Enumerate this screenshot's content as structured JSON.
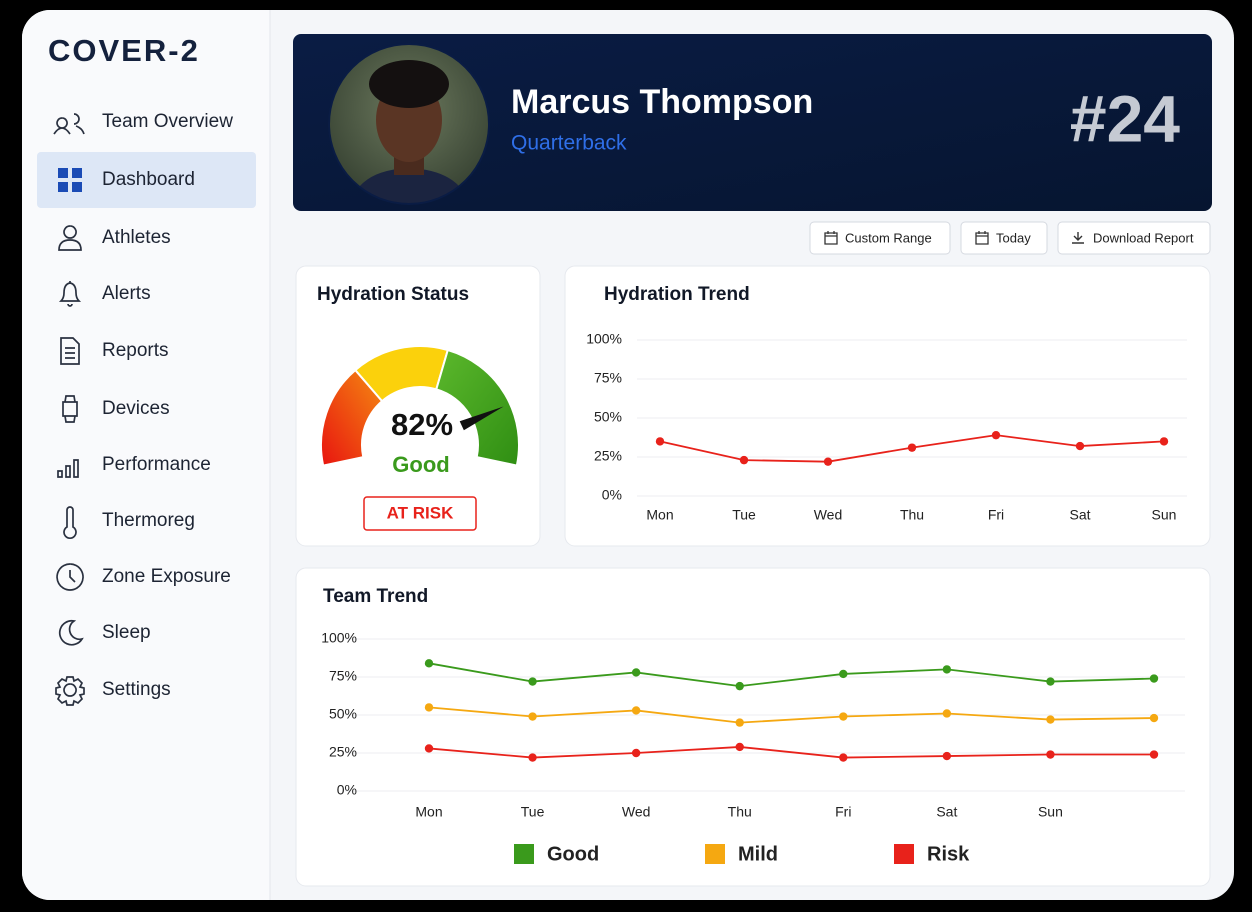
{
  "sidebar": {
    "logo": "COVER-2",
    "nav": [
      "Team Overview",
      "Dashboard",
      "Athletes",
      "Alerts",
      "Reports",
      "Devices",
      "Performance",
      "Thermoreg",
      "Zone Exposure",
      "Sleep",
      "Settings"
    ],
    "active": 1
  },
  "profile": {
    "name": "Marcus Thompson",
    "position": "Quarterback",
    "number": "#24"
  },
  "actions": [
    "Custom Range",
    "Today",
    "Download Report"
  ],
  "chart_data": [
    {
      "type": "gauge",
      "title": "Hydration Status",
      "value": 82,
      "value_label": "82%",
      "status": "Good",
      "alert": "AT RISK",
      "lim": [
        0,
        100
      ]
    },
    {
      "type": "line",
      "title": "Hydration Trend",
      "categories": [
        "Mon",
        "Tue",
        "Wed",
        "Thu",
        "Fri",
        "Sat",
        "Sun"
      ],
      "values": [
        35,
        23,
        22,
        31,
        39,
        32,
        35
      ],
      "color": "#e8221b",
      "ylim": [
        0,
        100
      ],
      "yticks": [
        {
          "value": 0,
          "label": "0%"
        },
        {
          "value": 25,
          "label": "25%"
        },
        {
          "value": 50,
          "label": "50%"
        },
        {
          "value": 75,
          "label": "75%"
        },
        {
          "value": 100,
          "label": "100%"
        }
      ],
      "grid": true
    },
    {
      "type": "line",
      "title": "Team Trend",
      "categories": [
        "Mon",
        "Tue",
        "Wed",
        "Thu",
        "Fri",
        "Sat",
        "Sun",
        null
      ],
      "series": [
        {
          "name": "Good",
          "color": "#3a9a1c",
          "values": [
            84,
            72,
            78,
            69,
            77,
            80,
            72,
            74
          ]
        },
        {
          "name": "Mild",
          "color": "#f5a811",
          "values": [
            55,
            49,
            53,
            45,
            49,
            51,
            47,
            48
          ]
        },
        {
          "name": "Risk",
          "color": "#e8221b",
          "values": [
            28,
            22,
            25,
            29,
            22,
            23,
            24,
            24
          ]
        }
      ],
      "ylim": [
        0,
        100
      ],
      "yticks": [
        {
          "value": 0,
          "label": "0%"
        },
        {
          "value": 25,
          "label": "25%"
        },
        {
          "value": 50,
          "label": "50%"
        },
        {
          "value": 75,
          "label": "75%"
        },
        {
          "value": 100,
          "label": "100%"
        }
      ],
      "grid": true,
      "legend": "bottom"
    }
  ]
}
